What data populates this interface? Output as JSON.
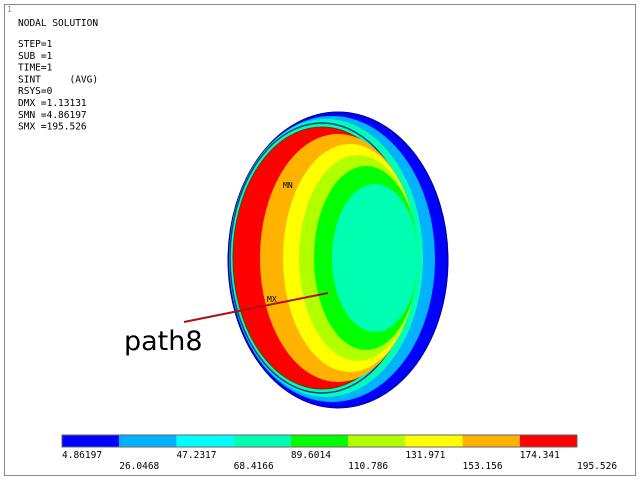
{
  "corner_label": "1",
  "header": {
    "title": "NODAL SOLUTION",
    "lines": [
      "STEP=1",
      "SUB =1",
      "TIME=1",
      "SINT     (AVG)",
      "RSYS=0",
      "DMX =1.13131",
      "SMN =4.86197",
      "SMX =195.526"
    ]
  },
  "legend": {
    "colors": [
      "#0000ff",
      "#00b2ff",
      "#00ffff",
      "#00ffb2",
      "#00ff00",
      "#b2ff00",
      "#ffff00",
      "#ffb200",
      "#ff0000"
    ],
    "labels": [
      "4.86197",
      "26.0468",
      "47.2317",
      "68.4166",
      "89.6014",
      "110.786",
      "131.971",
      "153.156",
      "174.341",
      "195.526"
    ]
  },
  "annotations": {
    "min": "MN",
    "max": "MX",
    "path": "path8"
  }
}
